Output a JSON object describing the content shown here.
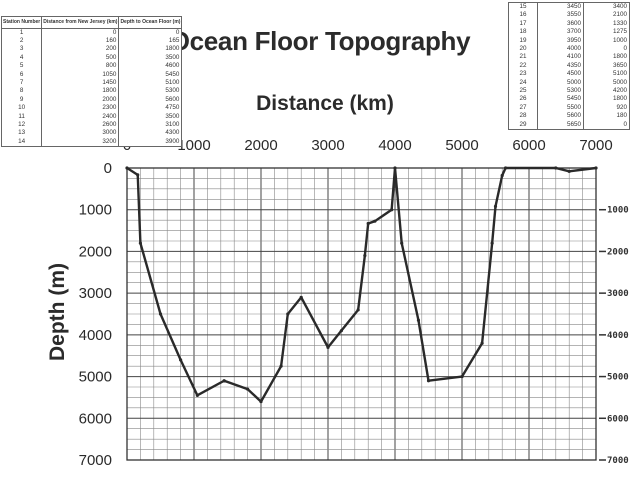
{
  "title": "Ocean Floor Topography",
  "chart_data": {
    "type": "line",
    "title": "Ocean Floor Topography",
    "xlabel": "Distance (km)",
    "ylabel": "Depth (m)",
    "xlim": [
      0,
      7000
    ],
    "ylim": [
      0,
      7000
    ],
    "y_inverted": true,
    "x_ticks": [
      "0",
      "1000",
      "2000",
      "3000",
      "4000",
      "5000",
      "6000",
      "7000"
    ],
    "y_ticks": [
      "0",
      "1000",
      "2000",
      "3000",
      "4000",
      "5000",
      "6000",
      "7000"
    ],
    "right_ticks": [
      "1000",
      "2000",
      "3000",
      "4000",
      "5000",
      "6000",
      "7000"
    ],
    "grid": true,
    "series": [
      {
        "x": [
          0,
          160,
          200,
          500,
          800,
          1050,
          1450,
          1800,
          2000,
          2300,
          2400,
          2600,
          3000,
          3200,
          3450,
          3550,
          3600,
          3700,
          3950,
          4000,
          4100,
          4350,
          4500,
          5000,
          5300,
          5450,
          5500,
          5600,
          5650,
          6400,
          6600,
          7000
        ],
        "y": [
          0,
          165,
          1800,
          3500,
          4600,
          5450,
          5100,
          5300,
          5600,
          4750,
          3500,
          3100,
          4300,
          3900,
          3400,
          2100,
          1330,
          1275,
          1000,
          0,
          1800,
          3650,
          5100,
          5000,
          4200,
          1800,
          920,
          180,
          0,
          0,
          80,
          0
        ]
      }
    ]
  },
  "tables": {
    "left": {
      "headers": [
        "Station Number",
        "Distance from New Jersey (km)",
        "Depth to Ocean Floor (m)"
      ],
      "rows": [
        [
          "1",
          "0",
          "0"
        ],
        [
          "2",
          "160",
          "165"
        ],
        [
          "3",
          "200",
          "1800"
        ],
        [
          "4",
          "500",
          "3500"
        ],
        [
          "5",
          "800",
          "4600"
        ],
        [
          "6",
          "1050",
          "5450"
        ],
        [
          "7",
          "1450",
          "5100"
        ],
        [
          "8",
          "1800",
          "5300"
        ],
        [
          "9",
          "2000",
          "5600"
        ],
        [
          "10",
          "2300",
          "4750"
        ],
        [
          "11",
          "2400",
          "3500"
        ],
        [
          "12",
          "2600",
          "3100"
        ],
        [
          "13",
          "3000",
          "4300"
        ],
        [
          "14",
          "3200",
          "3900"
        ]
      ]
    },
    "right": {
      "rows": [
        [
          "15",
          "3450",
          "3400"
        ],
        [
          "16",
          "3550",
          "2100"
        ],
        [
          "17",
          "3600",
          "1330"
        ],
        [
          "18",
          "3700",
          "1275"
        ],
        [
          "19",
          "3950",
          "1000"
        ],
        [
          "20",
          "4000",
          "0"
        ],
        [
          "21",
          "4100",
          "1800"
        ],
        [
          "22",
          "4350",
          "3650"
        ],
        [
          "23",
          "4500",
          "5100"
        ],
        [
          "24",
          "5000",
          "5000"
        ],
        [
          "25",
          "5300",
          "4200"
        ],
        [
          "26",
          "5450",
          "1800"
        ],
        [
          "27",
          "5500",
          "920"
        ],
        [
          "28",
          "5600",
          "180"
        ],
        [
          "29",
          "5650",
          "0"
        ]
      ]
    }
  }
}
